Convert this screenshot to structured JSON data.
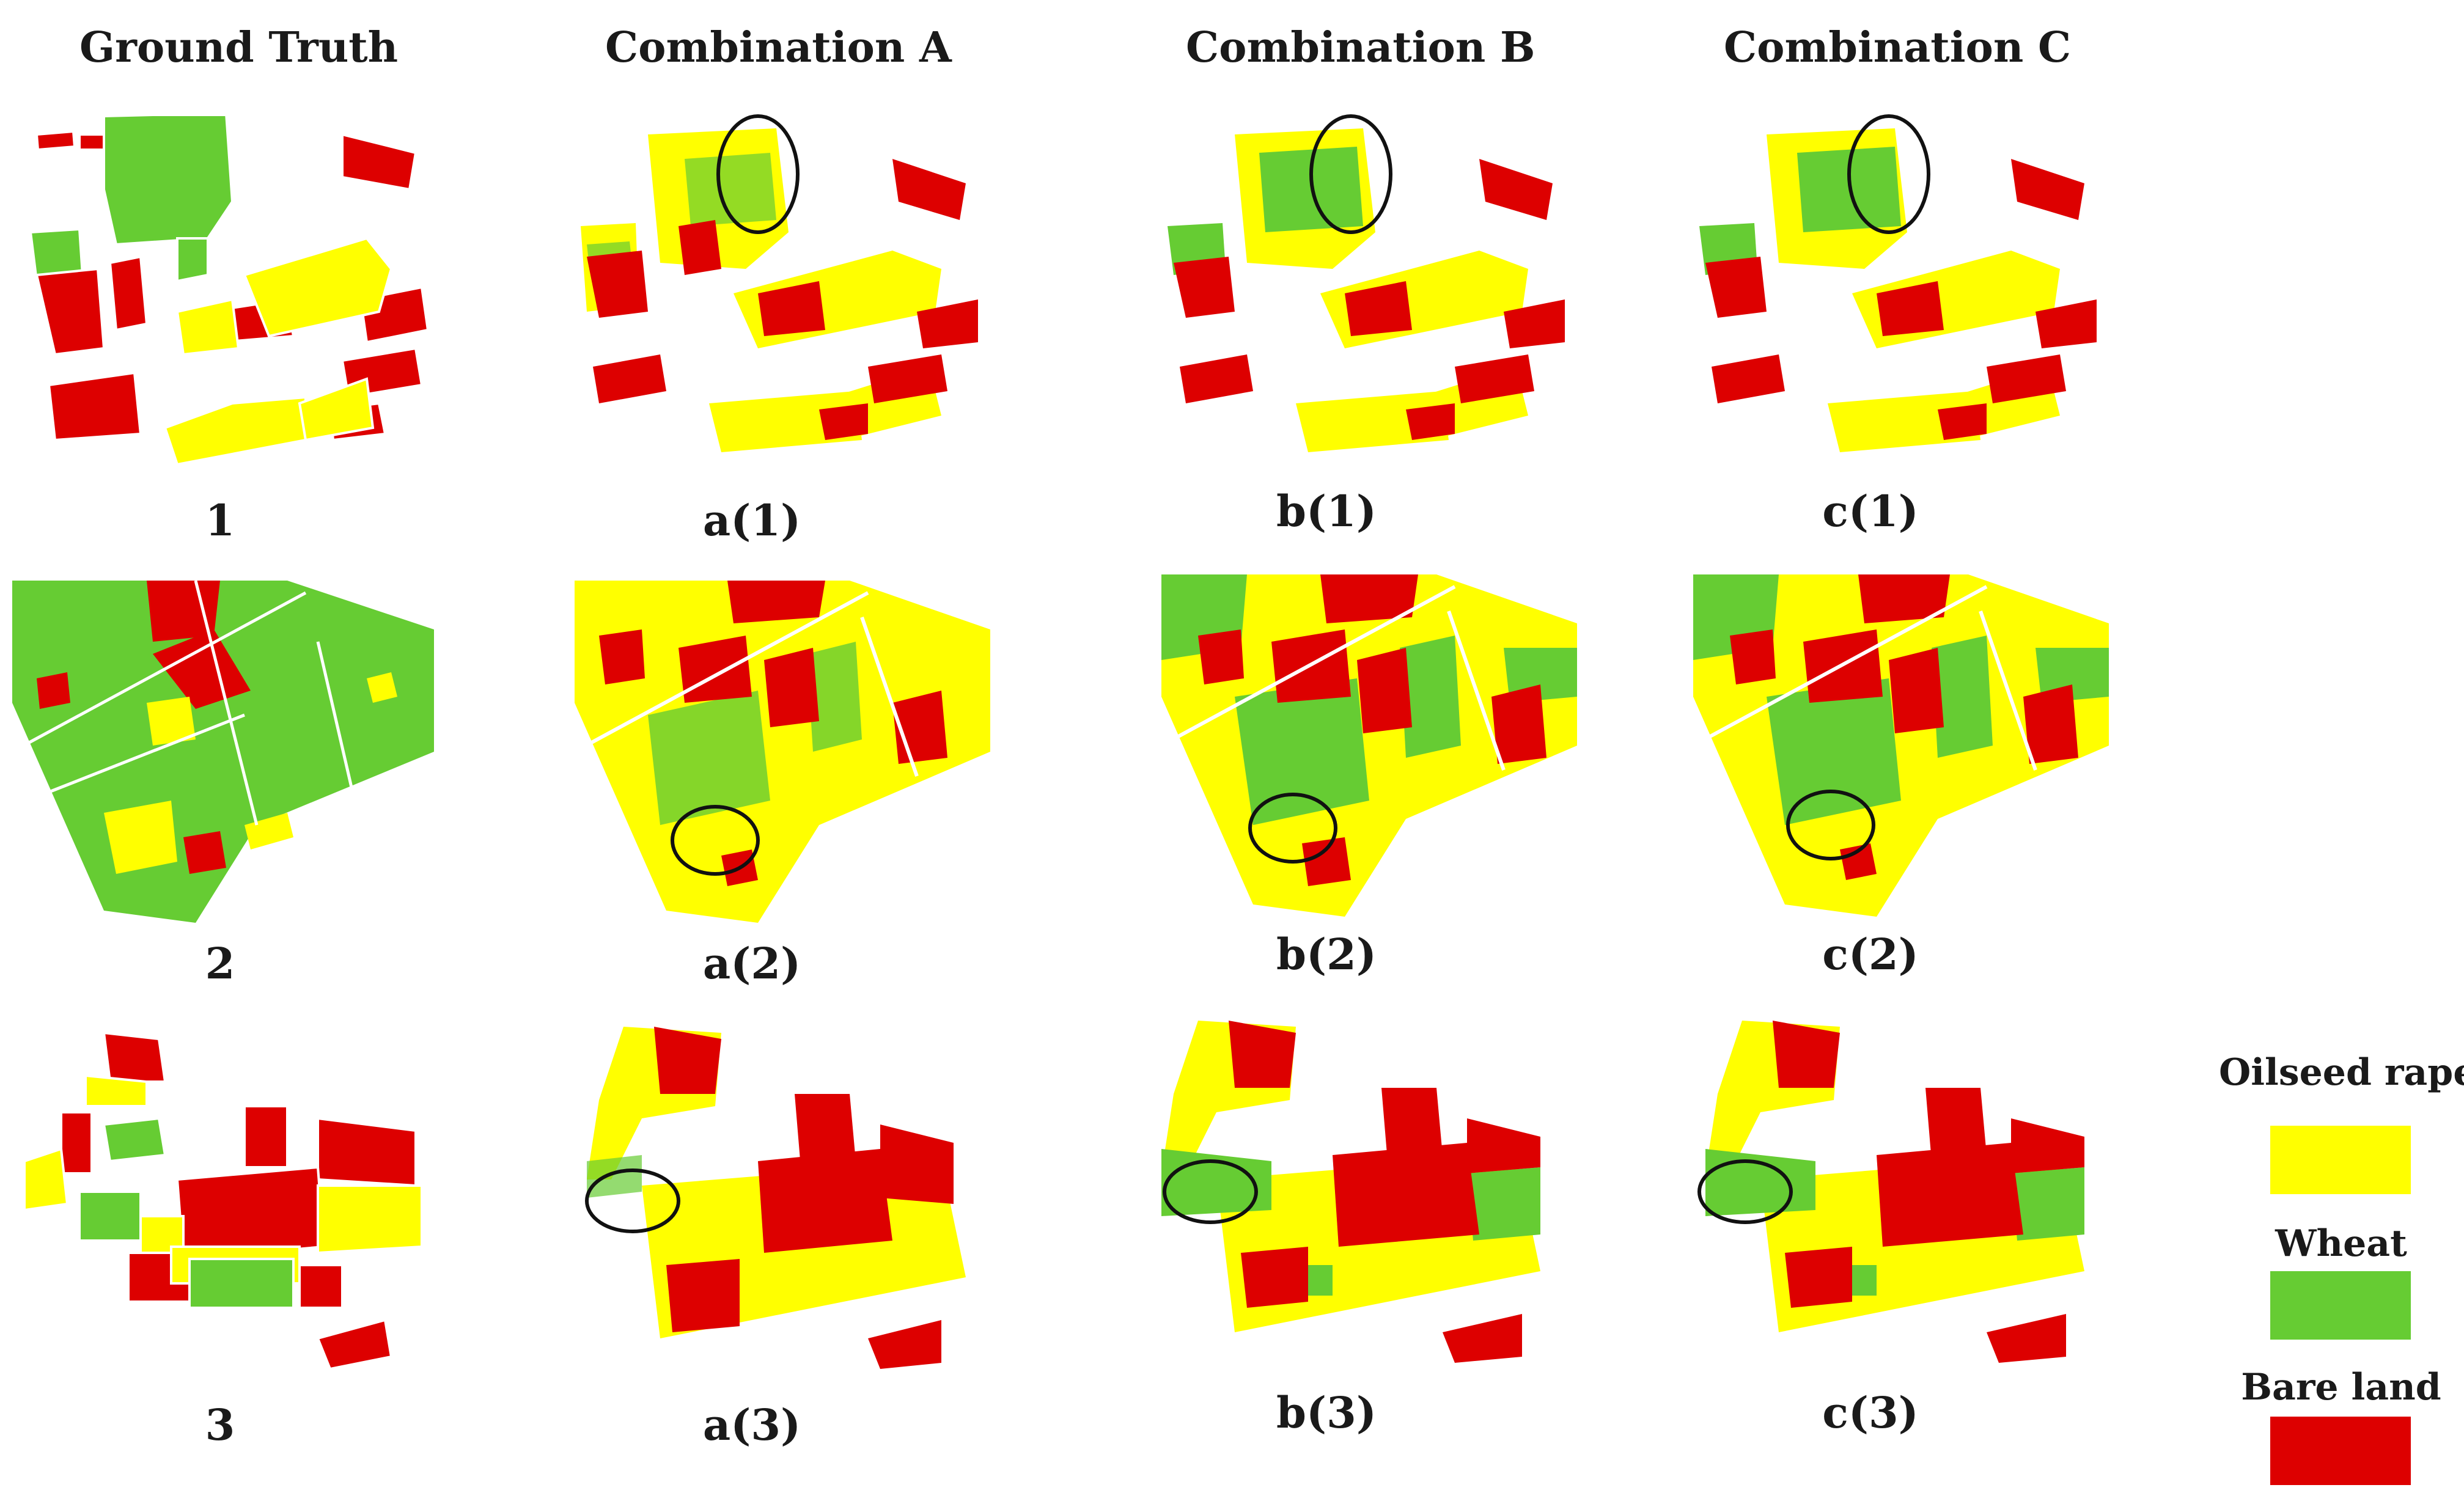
{
  "columns": {
    "ground_truth": "Ground Truth",
    "combination_a": "Combination A",
    "combination_b": "Combination B",
    "combination_c": "Combination C"
  },
  "captions": {
    "gt": [
      "1",
      "2",
      "3"
    ],
    "a": [
      "a(1)",
      "a(2)",
      "a(3)"
    ],
    "b": [
      "b(1)",
      "b(2)",
      "b(3)"
    ],
    "c": [
      "c(1)",
      "c(2)",
      "c(3)"
    ]
  },
  "legend": {
    "items": [
      {
        "label": "Oilseed rape",
        "color": "#ffff00"
      },
      {
        "label": "Wheat",
        "color": "#66cc33"
      },
      {
        "label": "Bare land",
        "color": "#dd0000"
      }
    ]
  },
  "colors": {
    "oilseed_rape": "#ffff00",
    "wheat": "#66cc33",
    "bare_land": "#dd0000",
    "highlight_ellipse": "#111111"
  }
}
